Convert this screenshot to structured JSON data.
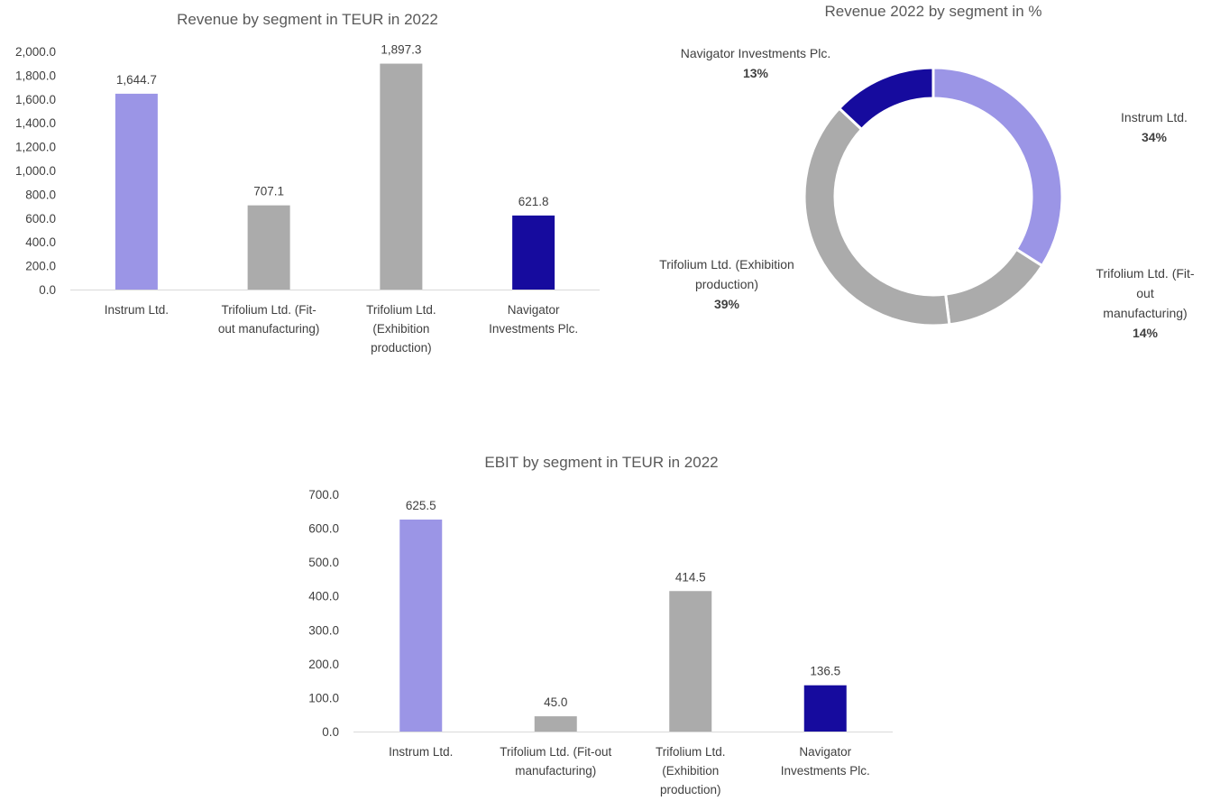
{
  "chart_data": [
    {
      "id": "rev",
      "type": "bar",
      "title": "Revenue by segment in TEUR in 2022",
      "categories": [
        [
          "Instrum Ltd."
        ],
        [
          "Trifolium Ltd. (Fit-",
          "out manufacturing)"
        ],
        [
          "Trifolium Ltd.",
          "(Exhibition",
          "production)"
        ],
        [
          "Navigator",
          "Investments Plc."
        ]
      ],
      "values": [
        1644.7,
        707.1,
        1897.3,
        621.8
      ],
      "value_labels": [
        "1,644.7",
        "707.1",
        "1,897.3",
        "621.8"
      ],
      "colors": [
        "#9b95e6",
        "#ababab",
        "#ababab",
        "#160b9e"
      ],
      "ylim": [
        0,
        2000
      ],
      "yticks": [
        "0.0",
        "200.0",
        "400.0",
        "600.0",
        "800.0",
        "1,000.0",
        "1,200.0",
        "1,400.0",
        "1,600.0",
        "1,800.0",
        "2,000.0"
      ],
      "grid": false
    },
    {
      "id": "pct",
      "type": "pie",
      "donut": true,
      "title": "Revenue 2022 by segment in %",
      "slices": [
        {
          "name": [
            "Instrum Ltd."
          ],
          "value": 34,
          "pct": "34%",
          "color": "#9b95e6"
        },
        {
          "name": [
            "Trifolium Ltd. (Fit-",
            "out",
            "manufacturing)"
          ],
          "value": 14,
          "pct": "14%",
          "color": "#ababab"
        },
        {
          "name": [
            "Trifolium Ltd. (Exhibition",
            "production)"
          ],
          "value": 39,
          "pct": "39%",
          "color": "#ababab"
        },
        {
          "name": [
            "Navigator Investments Plc."
          ],
          "value": 13,
          "pct": "13%",
          "color": "#160b9e"
        }
      ]
    },
    {
      "id": "ebit",
      "type": "bar",
      "title": "EBIT by segment in TEUR in 2022",
      "categories": [
        [
          "Instrum Ltd."
        ],
        [
          "Trifolium Ltd. (Fit-out",
          "manufacturing)"
        ],
        [
          "Trifolium Ltd.",
          "(Exhibition",
          "production)"
        ],
        [
          "Navigator",
          "Investments Plc."
        ]
      ],
      "values": [
        625.5,
        45.0,
        414.5,
        136.5
      ],
      "value_labels": [
        "625.5",
        "45.0",
        "414.5",
        "136.5"
      ],
      "colors": [
        "#9b95e6",
        "#ababab",
        "#ababab",
        "#160b9e"
      ],
      "ylim": [
        0,
        700
      ],
      "yticks": [
        "0.0",
        "100.0",
        "200.0",
        "300.0",
        "400.0",
        "500.0",
        "600.0",
        "700.0"
      ],
      "grid": false
    }
  ]
}
